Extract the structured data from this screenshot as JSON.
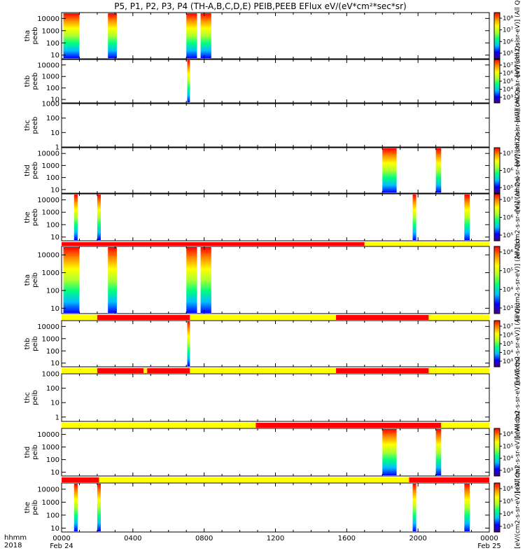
{
  "chart_data": {
    "type": "heatmap",
    "title": "P5, P1, P2, P3, P4 (TH-A,B,C,D,E) PEIB,PEEB EFlux eV/(eV*cm²*sec*sr)",
    "x_label_top": "hhmm",
    "x_label_bottom": "2018",
    "x_unit": "hours since 2018-02-24 00:00",
    "x_range": [
      0,
      24
    ],
    "x_ticks": [
      {
        "value": 0,
        "label": "0000",
        "sublabel": "Feb 24"
      },
      {
        "value": 4,
        "label": "0400",
        "sublabel": ""
      },
      {
        "value": 8,
        "label": "0800",
        "sublabel": ""
      },
      {
        "value": 12,
        "label": "1200",
        "sublabel": ""
      },
      {
        "value": 16,
        "label": "1600",
        "sublabel": ""
      },
      {
        "value": 20,
        "label": "2000",
        "sublabel": ""
      },
      {
        "value": 24,
        "label": "0000",
        "sublabel": "Feb 25"
      }
    ],
    "colormap": [
      "#4b0082",
      "#0000ff",
      "#00bfff",
      "#00ff7f",
      "#adff2f",
      "#ffff00",
      "#ff8c00",
      "#ff0000"
    ],
    "panels": [
      {
        "id": "tha-peeb",
        "ylabel": [
          "tha",
          "peeb"
        ],
        "yrange": [
          5,
          30000
        ],
        "yticks": [
          10,
          100,
          1000,
          10000
        ],
        "ytick_labels": [
          "10",
          "100",
          "1000",
          "10000"
        ],
        "cb_ticks": [
          "10⁵",
          "10⁶",
          "10⁷",
          "10⁸"
        ],
        "cb_unit": "[eV/(cm2-s-sr-eV)] (All Qs)",
        "intervals": [
          [
            0.1,
            1.0
          ],
          [
            2.6,
            3.1
          ],
          [
            7.0,
            7.6
          ],
          [
            7.8,
            8.4
          ]
        ]
      },
      {
        "id": "thb-peeb",
        "ylabel": [
          "thb",
          "peeb"
        ],
        "yrange": [
          5,
          30000
        ],
        "yticks": [
          10,
          100,
          1000,
          10000
        ],
        "ytick_labels": [
          "10",
          "100",
          "1000",
          "10000"
        ],
        "cb_ticks": [
          "10³",
          "10⁴",
          "10⁵",
          "10⁶",
          "10⁷"
        ],
        "cb_unit": "[eV/(cm2-s-sr-eV)] (All Qs)",
        "intervals": [
          [
            7.05,
            7.2
          ]
        ]
      },
      {
        "id": "thc-peeb",
        "ylabel": [
          "thc",
          "peeb"
        ],
        "yrange": [
          1,
          1000
        ],
        "yticks": [
          1,
          10,
          100,
          1000
        ],
        "ytick_labels": [
          "1",
          "10",
          "100",
          "1000"
        ],
        "cb_ticks": [],
        "cb_unit": "[eV/(cm2-s-sr-eV)] (All Qs)",
        "intervals": []
      },
      {
        "id": "thd-peeb",
        "ylabel": [
          "thd",
          "peeb"
        ],
        "yrange": [
          5,
          30000
        ],
        "yticks": [
          10,
          100,
          1000,
          10000
        ],
        "ytick_labels": [
          "10",
          "100",
          "1000",
          "10000"
        ],
        "cb_ticks": [
          "10⁵",
          "10⁶",
          "10⁷"
        ],
        "cb_unit": "[eV/(cm2-s-sr-eV)] (All Qs)",
        "intervals": [
          [
            18.0,
            18.8
          ],
          [
            21.0,
            21.3
          ]
        ]
      },
      {
        "id": "the-peeb",
        "ylabel": [
          "the",
          "peeb"
        ],
        "yrange": [
          5,
          30000
        ],
        "yticks": [
          10,
          100,
          1000,
          10000
        ],
        "ytick_labels": [
          "10",
          "100",
          "1000",
          "10000"
        ],
        "cb_ticks": [
          "10⁵",
          "10⁶",
          "10⁷"
        ],
        "cb_unit": "[eV/(cm2-s-sr-eV)] (All Qs)",
        "intervals": [
          [
            0.7,
            0.9
          ],
          [
            2.0,
            2.2
          ],
          [
            19.7,
            19.9
          ],
          [
            22.6,
            22.9
          ]
        ]
      },
      {
        "id": "tha-peib",
        "ylabel": [
          "tha",
          "peib"
        ],
        "yrange": [
          5,
          30000
        ],
        "yticks": [
          10,
          100,
          1000,
          10000
        ],
        "ytick_labels": [
          "10",
          "100",
          "1000",
          "10000"
        ],
        "cb_ticks": [
          "10³",
          "10⁴",
          "10⁵",
          "10⁶"
        ],
        "cb_unit": "[eV/(cm2-s-sr-eV)] (All Qs)",
        "intervals": [
          [
            0.1,
            1.0
          ],
          [
            2.6,
            3.1
          ],
          [
            7.0,
            7.6
          ],
          [
            7.8,
            8.4
          ]
        ]
      },
      {
        "id": "thb-peib",
        "ylabel": [
          "thb",
          "peib"
        ],
        "yrange": [
          5,
          30000
        ],
        "yticks": [
          10,
          100,
          1000,
          10000
        ],
        "ytick_labels": [
          "10",
          "100",
          "1000",
          "10000"
        ],
        "cb_ticks": [
          "10³",
          "10⁴",
          "10⁵",
          "10⁶",
          "10⁷"
        ],
        "cb_unit": "[eV/(cm2-s-sr-eV)] (All Qs)",
        "intervals": [
          [
            7.05,
            7.2
          ]
        ]
      },
      {
        "id": "thc-peib",
        "ylabel": [
          "thc",
          "peib"
        ],
        "yrange": [
          0.5,
          1000
        ],
        "yticks": [
          1,
          10,
          100,
          1000
        ],
        "ytick_labels": [
          "1",
          "10",
          "100",
          "1000"
        ],
        "cb_ticks": [],
        "cb_unit": "[eV/(cm2-s-sr-eV)] (All Qs)",
        "intervals": []
      },
      {
        "id": "thd-peib",
        "ylabel": [
          "thd",
          "peib"
        ],
        "yrange": [
          5,
          30000
        ],
        "yticks": [
          10,
          100,
          1000,
          10000
        ],
        "ytick_labels": [
          "10",
          "100",
          "1000",
          "10000"
        ],
        "cb_ticks": [
          "10³",
          "10⁴",
          "10⁵",
          "10⁶"
        ],
        "cb_unit": "[eV/(cm2-s-sr-eV)] (All Qs)",
        "intervals": [
          [
            18.0,
            18.8
          ],
          [
            21.0,
            21.3
          ]
        ]
      },
      {
        "id": "the-peib",
        "ylabel": [
          "the",
          "peib"
        ],
        "yrange": [
          5,
          30000
        ],
        "yticks": [
          10,
          100,
          1000,
          10000
        ],
        "ytick_labels": [
          "10",
          "100",
          "1000",
          "10000"
        ],
        "cb_ticks": [
          "10³",
          "10⁴",
          "10⁵",
          "10⁶"
        ],
        "cb_unit": "[eV/(cm2-s-sr-eV)] (All Qs)",
        "intervals": [
          [
            0.7,
            0.9
          ],
          [
            2.0,
            2.2
          ],
          [
            19.7,
            19.9
          ],
          [
            22.6,
            22.9
          ]
        ]
      }
    ],
    "mode_bars": [
      {
        "id": "mode-bar-1",
        "segments": [
          {
            "from": 0,
            "to": 17.0,
            "color": "#ff0000"
          },
          {
            "from": 17.0,
            "to": 24,
            "color": "#ffff00"
          }
        ]
      },
      {
        "id": "mode-bar-2",
        "segments": [
          {
            "from": 0,
            "to": 2.0,
            "color": "#ffff00"
          },
          {
            "from": 2.0,
            "to": 7.2,
            "color": "#ff0000"
          },
          {
            "from": 7.2,
            "to": 15.4,
            "color": "#ffff00"
          },
          {
            "from": 15.4,
            "to": 20.6,
            "color": "#ff0000"
          },
          {
            "from": 20.6,
            "to": 24,
            "color": "#ffff00"
          }
        ]
      },
      {
        "id": "mode-bar-3",
        "segments": [
          {
            "from": 0,
            "to": 2.0,
            "color": "#ffff00"
          },
          {
            "from": 2.0,
            "to": 4.6,
            "color": "#ff0000"
          },
          {
            "from": 4.6,
            "to": 4.8,
            "color": "#ffff00"
          },
          {
            "from": 4.8,
            "to": 7.2,
            "color": "#ff0000"
          },
          {
            "from": 7.2,
            "to": 15.4,
            "color": "#ffff00"
          },
          {
            "from": 15.4,
            "to": 20.6,
            "color": "#ff0000"
          },
          {
            "from": 20.6,
            "to": 24,
            "color": "#ffff00"
          }
        ]
      },
      {
        "id": "mode-bar-4",
        "segments": [
          {
            "from": 0,
            "to": 10.9,
            "color": "#ffff00"
          },
          {
            "from": 10.9,
            "to": 21.3,
            "color": "#ff0000"
          },
          {
            "from": 21.3,
            "to": 24,
            "color": "#ffff00"
          }
        ]
      },
      {
        "id": "mode-bar-5",
        "segments": [
          {
            "from": 0,
            "to": 2.1,
            "color": "#ff0000"
          },
          {
            "from": 2.1,
            "to": 19.5,
            "color": "#ffff00"
          },
          {
            "from": 19.5,
            "to": 24,
            "color": "#ff0000"
          }
        ]
      }
    ]
  }
}
